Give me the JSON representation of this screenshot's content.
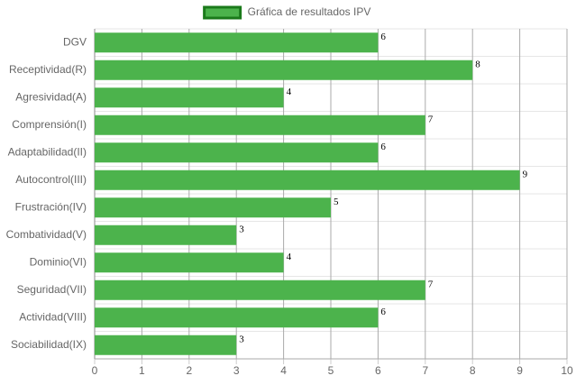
{
  "chart_data": {
    "type": "bar",
    "orientation": "horizontal",
    "categories": [
      "DGV",
      "Receptividad(R)",
      "Agresividad(A)",
      "Comprensión(I)",
      "Adaptabilidad(II)",
      "Autocontrol(III)",
      "Frustración(IV)",
      "Combatividad(V)",
      "Dominio(VI)",
      "Seguridad(VII)",
      "Actividad(VIII)",
      "Sociabilidad(IX)"
    ],
    "series": [
      {
        "name": "Gráfica de resultados IPV",
        "color": "#4cb34c",
        "values": [
          6,
          8,
          4,
          7,
          6,
          9,
          5,
          3,
          4,
          7,
          6,
          3
        ]
      }
    ],
    "xlim": [
      0,
      10
    ],
    "xticks": [
      0,
      1,
      2,
      3,
      4,
      5,
      6,
      7,
      8,
      9,
      10
    ],
    "grid": true,
    "legend": "top"
  }
}
